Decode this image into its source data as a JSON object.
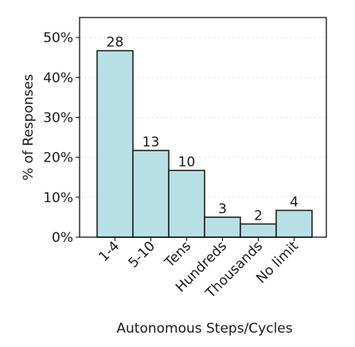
{
  "chart_data": {
    "type": "bar",
    "xlabel": "Autonomous Steps/Cycles",
    "ylabel": "% of Responses",
    "categories": [
      "1-4",
      "5-10",
      "Tens",
      "Hundreds",
      "Thousands",
      "No limit"
    ],
    "counts": [
      28,
      13,
      10,
      3,
      2,
      4
    ],
    "values_percent": [
      46.7,
      21.7,
      16.7,
      5.0,
      3.3,
      6.7
    ],
    "ylim": [
      0,
      55
    ],
    "yticks": [
      0,
      10,
      20,
      30,
      40,
      50
    ],
    "ytick_labels": [
      "0%",
      "10%",
      "20%",
      "30%",
      "40%",
      "50%"
    ],
    "grid": "horizontal",
    "bar_fill": "#b7e0e6",
    "bar_stroke": "#222222",
    "grid_color": "#e6e6e6"
  }
}
